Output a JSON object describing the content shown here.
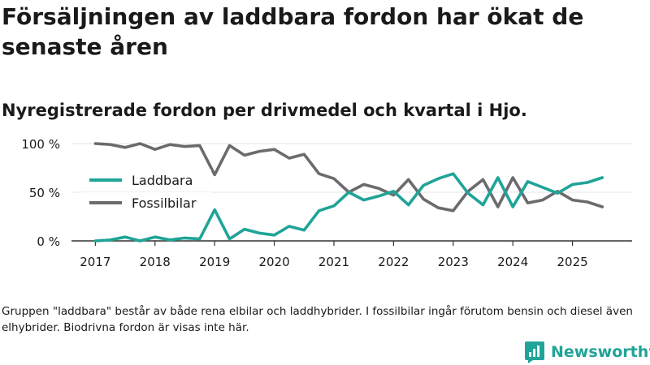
{
  "title": "Försäljningen av laddbara fordon har ökat de senaste åren",
  "subtitle": "Nyregistrerade fordon per drivmedel och kvartal i Hjo.",
  "footnote": "Gruppen \"laddbara\" består av både rena elbilar och laddhybrider. I fossilbilar ingår förutom bensin och diesel även elhybrider. Biodrivna fordon är visas inte här.",
  "brand": {
    "name": "Newsworthy",
    "icon": "newsworthy-logo-icon",
    "color": "#1fa497"
  },
  "chart_data": {
    "type": "line",
    "title": "Nyregistrerade fordon per drivmedel och kvartal i Hjo.",
    "xlabel": "",
    "ylabel": "",
    "ylim": [
      0,
      100
    ],
    "yticks": [
      0,
      50,
      100
    ],
    "ytick_labels": [
      "0 %",
      "50 %",
      "100 %"
    ],
    "xticks": [
      2017,
      2018,
      2019,
      2020,
      2021,
      2022,
      2023,
      2024,
      2025
    ],
    "xtick_labels": [
      "2017",
      "2018",
      "2019",
      "2020",
      "2021",
      "2022",
      "2023",
      "2024",
      "2025"
    ],
    "xlim": [
      2016.6,
      2026.0
    ],
    "grid": true,
    "legend_position": "left",
    "x": [
      2017.0,
      2017.25,
      2017.5,
      2017.75,
      2018.0,
      2018.25,
      2018.5,
      2018.75,
      2019.0,
      2019.25,
      2019.5,
      2019.75,
      2020.0,
      2020.25,
      2020.5,
      2020.75,
      2021.0,
      2021.25,
      2021.5,
      2021.75,
      2022.0,
      2022.25,
      2022.5,
      2022.75,
      2023.0,
      2023.25,
      2023.5,
      2023.75,
      2024.0,
      2024.25,
      2024.5,
      2024.75,
      2025.0,
      2025.25,
      2025.5
    ],
    "series": [
      {
        "name": "Laddbara",
        "color": "#1fa497",
        "values": [
          0,
          1,
          4,
          0,
          4,
          1,
          3,
          2,
          32,
          2,
          12,
          8,
          6,
          15,
          11,
          31,
          36,
          50,
          42,
          46,
          51,
          37,
          57,
          64,
          69,
          49,
          37,
          65,
          35,
          61,
          55,
          49,
          58,
          60,
          65
        ]
      },
      {
        "name": "Fossilbilar",
        "color": "#6b6b6e",
        "values": [
          100,
          99,
          96,
          100,
          94,
          99,
          97,
          98,
          68,
          98,
          88,
          92,
          94,
          85,
          89,
          69,
          64,
          50,
          58,
          54,
          47,
          63,
          43,
          34,
          31,
          51,
          63,
          35,
          65,
          39,
          42,
          51,
          42,
          40,
          35
        ]
      }
    ]
  }
}
